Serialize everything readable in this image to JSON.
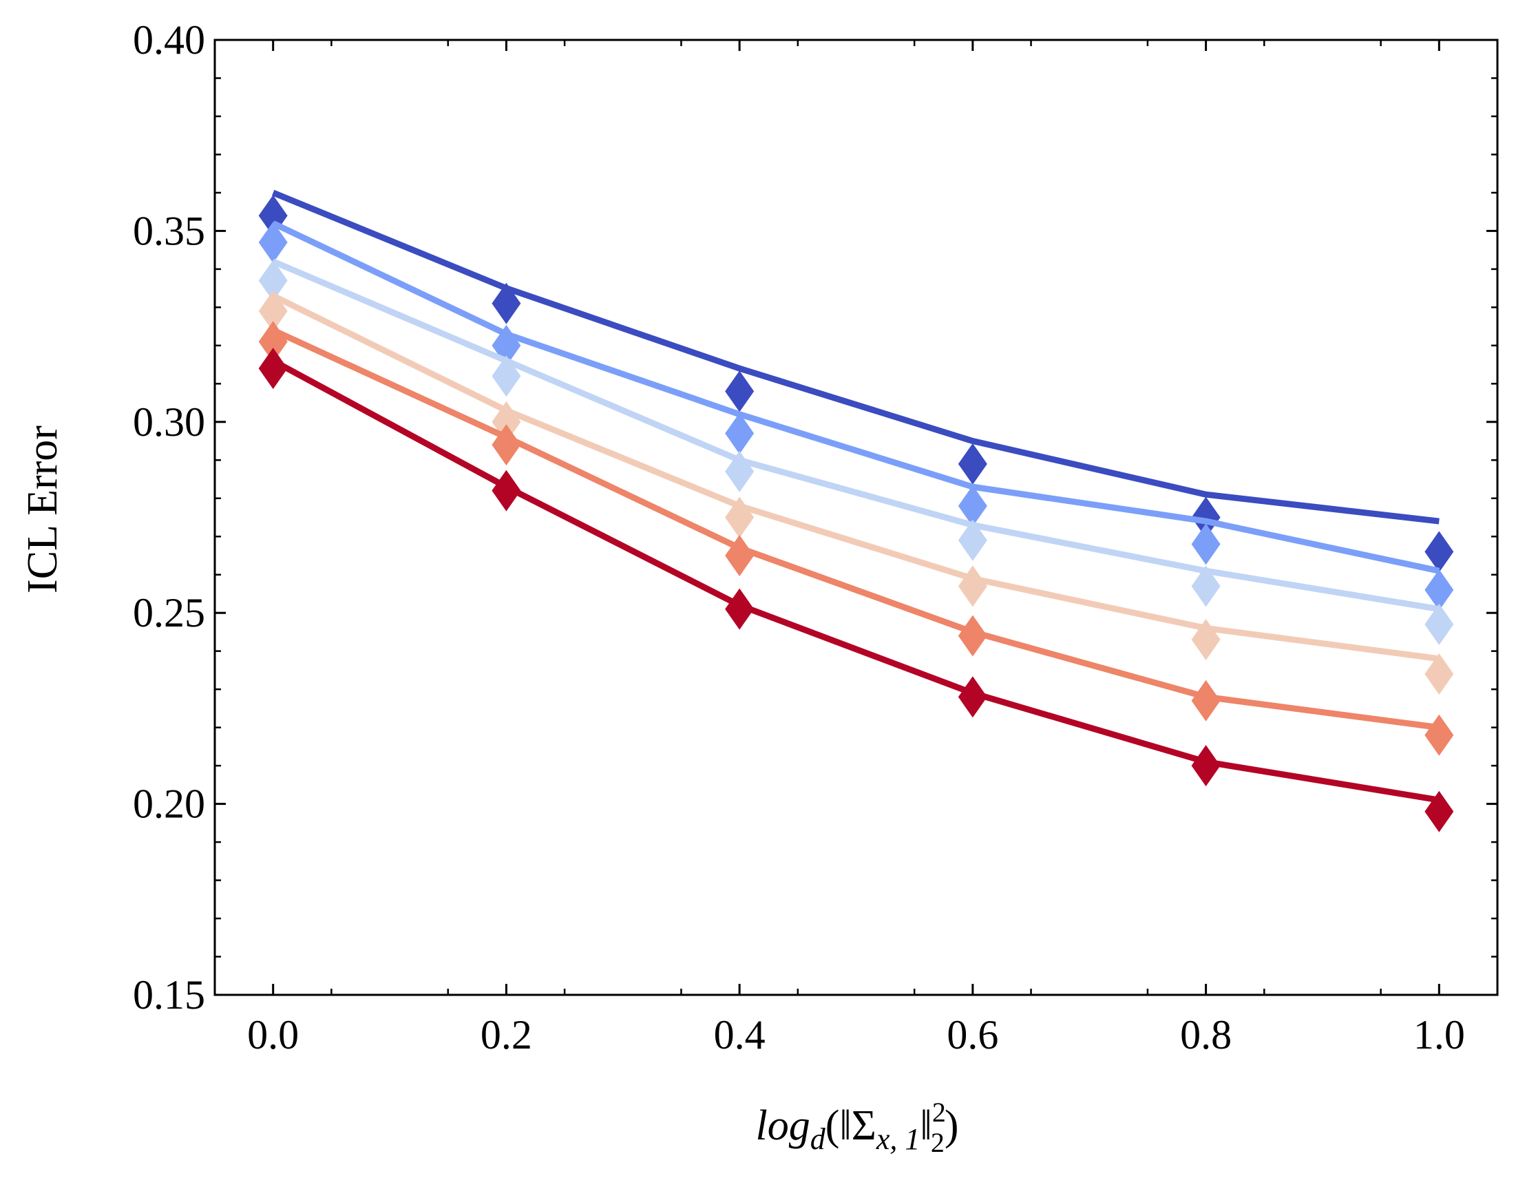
{
  "chart_data": {
    "type": "line",
    "title": "",
    "xlabel": {
      "base": "log",
      "sub_d": "d",
      "open": "(‖",
      "sigma": "Σ",
      "sub_sigma": "x, 1",
      "close_norm": "‖",
      "sub_two": "2",
      "sup_two": "2",
      "close": ")"
    },
    "ylabel": "ICL Error",
    "x": [
      0.0,
      0.2,
      0.4,
      0.6,
      0.8,
      1.0
    ],
    "xlim": [
      -0.05,
      1.05
    ],
    "ylim": [
      0.15,
      0.4
    ],
    "xticks": [
      "0.0",
      "0.2",
      "0.4",
      "0.6",
      "0.8",
      "1.0"
    ],
    "yticks": [
      "0.15",
      "0.20",
      "0.25",
      "0.30",
      "0.35",
      "0.40"
    ],
    "series": [
      {
        "name": "series-1",
        "color": "#3b4cc0",
        "line": [
          0.36,
          0.335,
          0.314,
          0.295,
          0.281,
          0.274
        ],
        "markers": [
          0.354,
          0.331,
          0.308,
          0.289,
          0.275,
          0.266
        ]
      },
      {
        "name": "series-2",
        "color": "#7b9ff9",
        "line": [
          0.352,
          0.323,
          0.302,
          0.283,
          0.274,
          0.261
        ],
        "markers": [
          0.347,
          0.32,
          0.297,
          0.278,
          0.268,
          0.256
        ]
      },
      {
        "name": "series-3",
        "color": "#c0d4f5",
        "line": [
          0.342,
          0.316,
          0.29,
          0.273,
          0.261,
          0.251
        ],
        "markers": [
          0.337,
          0.312,
          0.287,
          0.269,
          0.257,
          0.247
        ]
      },
      {
        "name": "series-4",
        "color": "#f2cbb7",
        "line": [
          0.333,
          0.303,
          0.278,
          0.259,
          0.246,
          0.238
        ],
        "markers": [
          0.329,
          0.3,
          0.275,
          0.257,
          0.243,
          0.234
        ]
      },
      {
        "name": "series-5",
        "color": "#ee8468",
        "line": [
          0.324,
          0.296,
          0.267,
          0.245,
          0.228,
          0.22
        ],
        "markers": [
          0.321,
          0.294,
          0.265,
          0.244,
          0.227,
          0.218
        ]
      },
      {
        "name": "series-6",
        "color": "#b40426",
        "line": [
          0.316,
          0.283,
          0.252,
          0.229,
          0.211,
          0.201
        ],
        "markers": [
          0.314,
          0.282,
          0.251,
          0.228,
          0.21,
          0.198
        ]
      }
    ]
  }
}
